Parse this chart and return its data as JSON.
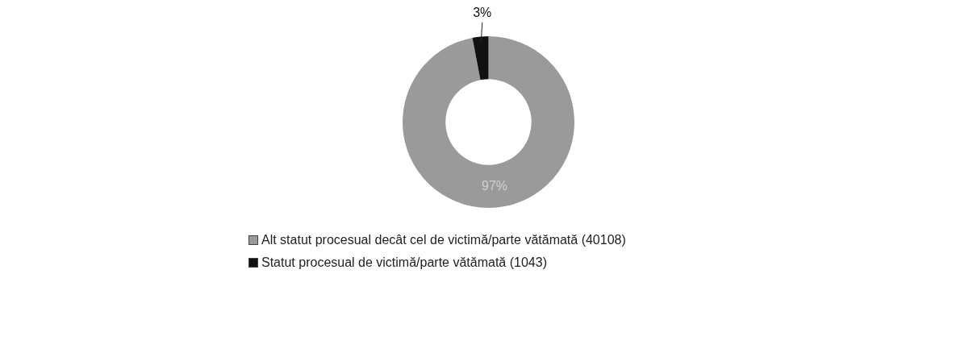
{
  "chart_data": {
    "type": "donut",
    "categories": [
      "Alt statut procesual decât cel de victimă/parte vătămată (40108)",
      "Statut procesual de victimă/parte vătămată (1043)"
    ],
    "values": [
      97,
      3
    ],
    "colors": [
      "#9a9a9a",
      "#111111"
    ],
    "value_labels": [
      "97%",
      "3%"
    ],
    "legend": "bottom"
  }
}
